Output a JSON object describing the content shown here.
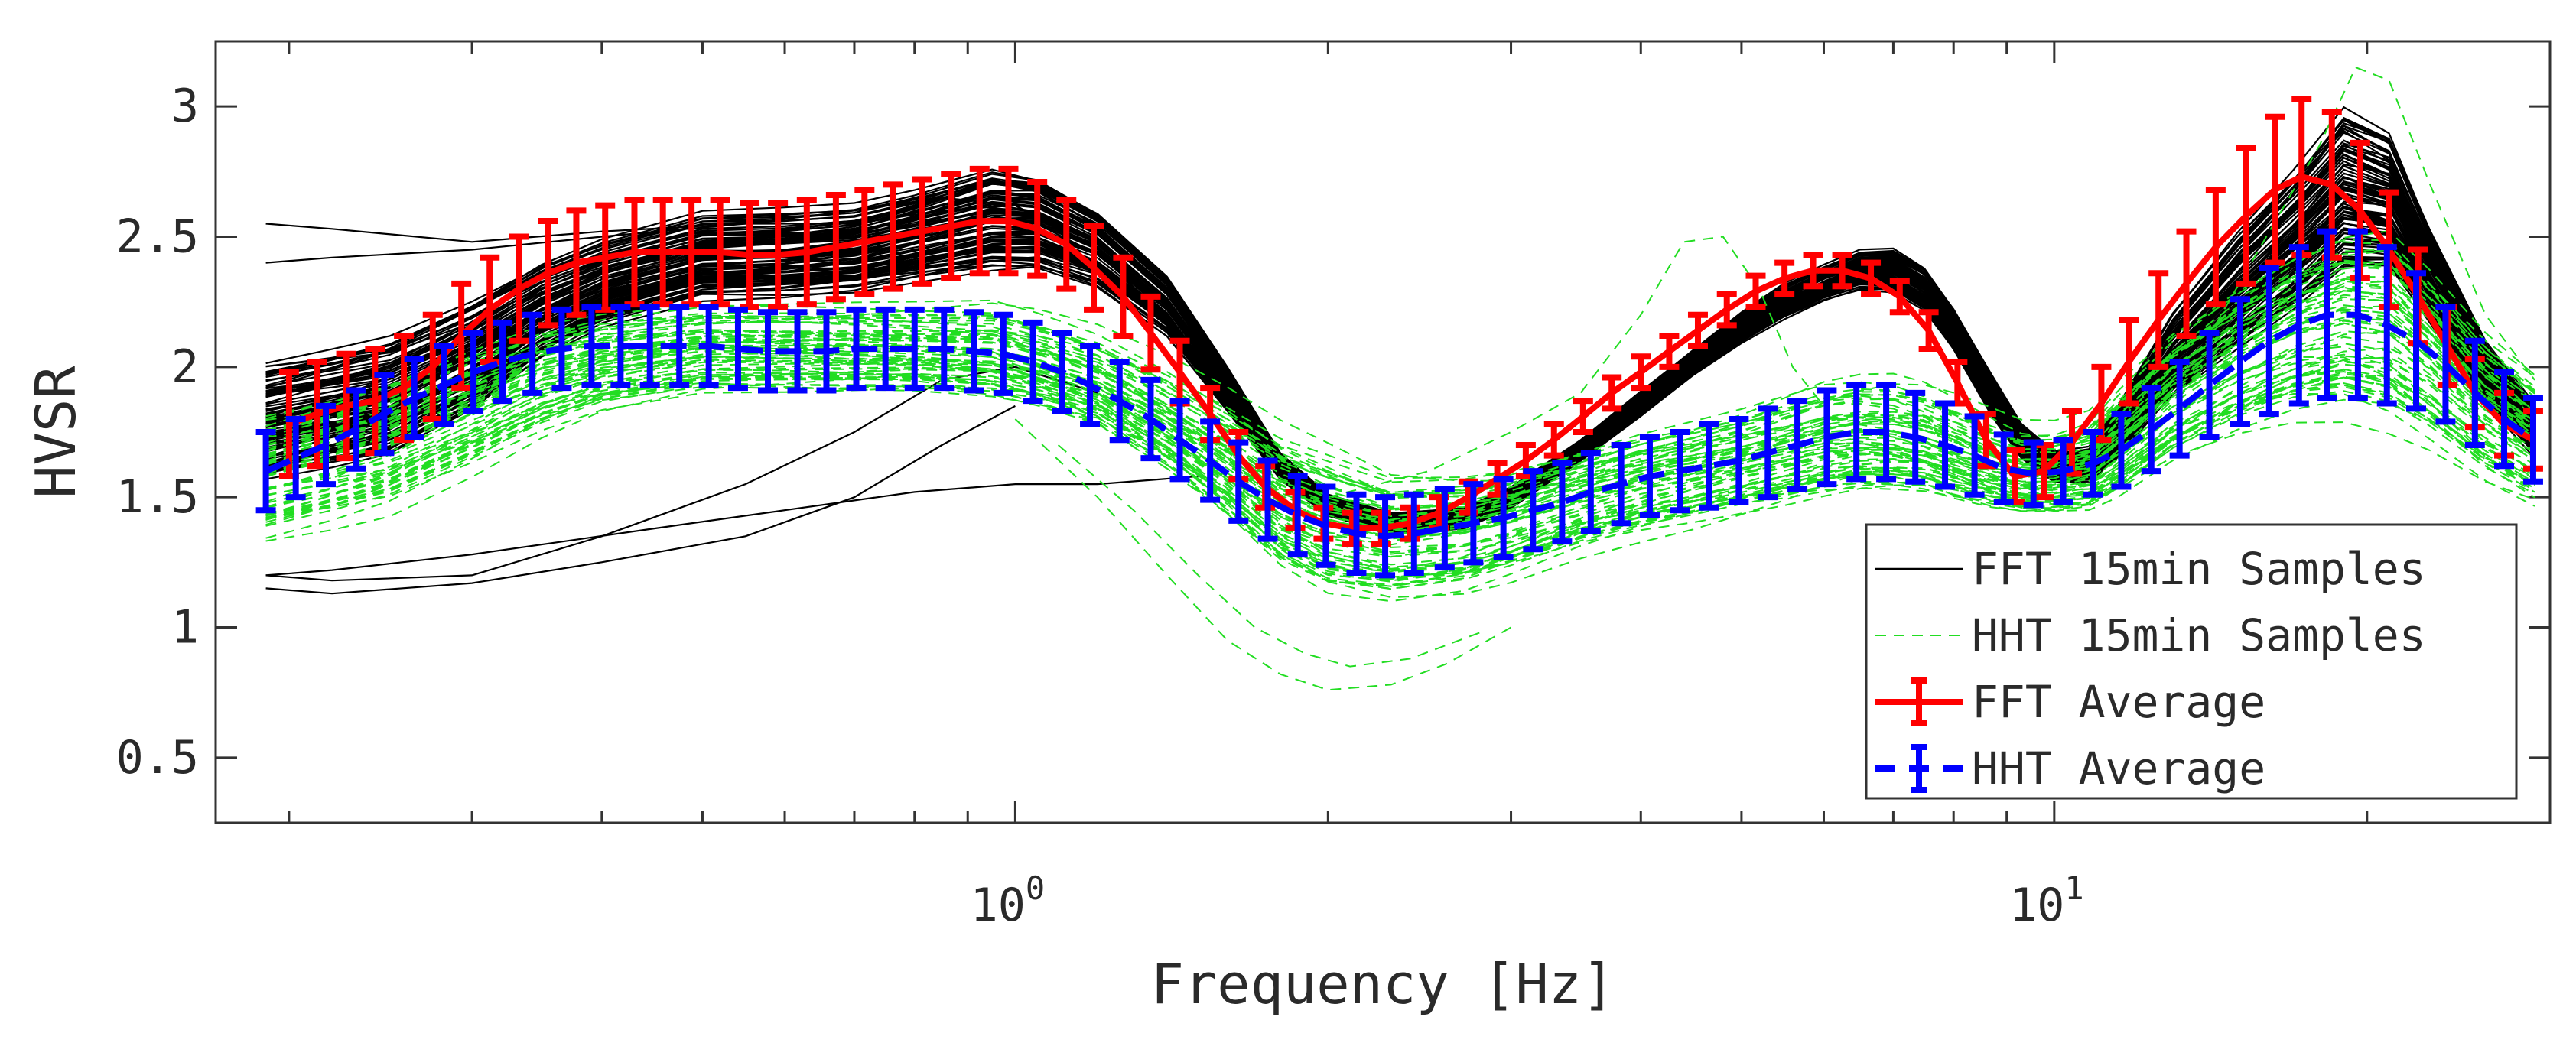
{
  "chart_data": {
    "type": "line",
    "title": "",
    "xlabel": "Frequency [Hz]",
    "ylabel": "HVSR",
    "x_scale": "log",
    "xlim": [
      0.17,
      30
    ],
    "ylim": [
      0.25,
      3.25
    ],
    "x_ticks": [
      {
        "value": 1,
        "base": "10",
        "exp": "0"
      },
      {
        "value": 10,
        "base": "10",
        "exp": "1"
      }
    ],
    "y_ticks": [
      {
        "value": 0.5,
        "label": "0.5"
      },
      {
        "value": 1,
        "label": "1"
      },
      {
        "value": 1.5,
        "label": "1.5"
      },
      {
        "value": 2,
        "label": "2"
      },
      {
        "value": 2.5,
        "label": "2.5"
      },
      {
        "value": 3,
        "label": "3"
      }
    ],
    "grid": false,
    "legend_position": "bottom-right",
    "legend": [
      {
        "label": "FFT 15min Samples",
        "color": "#000000",
        "style": "solid"
      },
      {
        "label": "HHT 15min Samples",
        "color": "#22dd22",
        "style": "dashed"
      },
      {
        "label": "FFT Average",
        "color": "#ff0000",
        "style": "errorbar"
      },
      {
        "label": "HHT Average",
        "color": "#0000ff",
        "style": "errorbar-dashed"
      }
    ],
    "series": [
      {
        "name": "FFT Average",
        "color": "#ff0000",
        "x": [
          0.2,
          0.213,
          0.227,
          0.242,
          0.258,
          0.275,
          0.293,
          0.312,
          0.333,
          0.355,
          0.378,
          0.403,
          0.43,
          0.458,
          0.488,
          0.52,
          0.555,
          0.591,
          0.63,
          0.672,
          0.716,
          0.763,
          0.813,
          0.867,
          0.924,
          0.985,
          1.05,
          1.12,
          1.19,
          1.27,
          1.35,
          1.44,
          1.54,
          1.64,
          1.74,
          1.86,
          1.98,
          2.11,
          2.25,
          2.4,
          2.56,
          2.73,
          2.91,
          3.1,
          3.3,
          3.52,
          3.75,
          4.0,
          4.26,
          4.54,
          4.84,
          5.16,
          5.5,
          5.86,
          6.25,
          6.66,
          7.1,
          7.57,
          8.07,
          8.6,
          9.16,
          9.77,
          10.4,
          11.1,
          11.8,
          12.6,
          13.4,
          14.3,
          15.3,
          16.3,
          17.3,
          18.5,
          19.7,
          21.0,
          22.4,
          23.9,
          25.4,
          27.1,
          28.9
        ],
        "y": [
          1.78,
          1.82,
          1.85,
          1.87,
          1.92,
          2.0,
          2.12,
          2.22,
          2.3,
          2.36,
          2.4,
          2.42,
          2.44,
          2.44,
          2.44,
          2.44,
          2.43,
          2.43,
          2.44,
          2.46,
          2.48,
          2.5,
          2.52,
          2.54,
          2.56,
          2.56,
          2.53,
          2.47,
          2.38,
          2.27,
          2.13,
          1.98,
          1.82,
          1.66,
          1.54,
          1.45,
          1.4,
          1.38,
          1.38,
          1.4,
          1.44,
          1.5,
          1.57,
          1.64,
          1.72,
          1.81,
          1.9,
          1.98,
          2.06,
          2.14,
          2.22,
          2.29,
          2.34,
          2.37,
          2.37,
          2.34,
          2.27,
          2.14,
          1.94,
          1.72,
          1.58,
          1.6,
          1.71,
          1.86,
          2.02,
          2.18,
          2.32,
          2.46,
          2.58,
          2.68,
          2.73,
          2.7,
          2.6,
          2.45,
          2.27,
          2.08,
          1.9,
          1.78,
          1.72
        ],
        "err": [
          0.2,
          0.2,
          0.2,
          0.2,
          0.2,
          0.2,
          0.2,
          0.2,
          0.2,
          0.2,
          0.2,
          0.2,
          0.2,
          0.2,
          0.2,
          0.2,
          0.2,
          0.2,
          0.2,
          0.2,
          0.2,
          0.2,
          0.2,
          0.2,
          0.2,
          0.2,
          0.18,
          0.17,
          0.16,
          0.15,
          0.14,
          0.12,
          0.1,
          0.09,
          0.08,
          0.07,
          0.06,
          0.06,
          0.06,
          0.06,
          0.06,
          0.06,
          0.06,
          0.06,
          0.06,
          0.06,
          0.06,
          0.06,
          0.06,
          0.06,
          0.06,
          0.06,
          0.06,
          0.06,
          0.06,
          0.06,
          0.06,
          0.07,
          0.08,
          0.1,
          0.1,
          0.1,
          0.12,
          0.14,
          0.16,
          0.18,
          0.2,
          0.22,
          0.26,
          0.28,
          0.3,
          0.28,
          0.26,
          0.22,
          0.18,
          0.15,
          0.13,
          0.12,
          0.11
        ]
      },
      {
        "name": "HHT Average",
        "color": "#0000ff",
        "x": [
          0.19,
          0.203,
          0.217,
          0.232,
          0.247,
          0.264,
          0.282,
          0.301,
          0.321,
          0.343,
          0.366,
          0.391,
          0.417,
          0.445,
          0.475,
          0.507,
          0.541,
          0.578,
          0.617,
          0.658,
          0.703,
          0.75,
          0.8,
          0.854,
          0.912,
          0.974,
          1.04,
          1.11,
          1.18,
          1.26,
          1.35,
          1.44,
          1.54,
          1.64,
          1.75,
          1.87,
          1.99,
          2.13,
          2.27,
          2.42,
          2.59,
          2.76,
          2.95,
          3.15,
          3.36,
          3.58,
          3.83,
          4.08,
          4.36,
          4.65,
          4.97,
          5.3,
          5.66,
          6.04,
          6.45,
          6.89,
          7.35,
          7.85,
          8.38,
          8.94,
          9.55,
          10.2,
          10.9,
          11.6,
          12.4,
          13.2,
          14.1,
          15.1,
          16.1,
          17.2,
          18.3,
          19.6,
          20.9,
          22.3,
          23.8,
          25.4,
          27.1,
          28.9
        ],
        "y": [
          1.6,
          1.65,
          1.7,
          1.76,
          1.82,
          1.88,
          1.93,
          1.98,
          2.02,
          2.05,
          2.07,
          2.08,
          2.08,
          2.08,
          2.08,
          2.08,
          2.07,
          2.06,
          2.06,
          2.06,
          2.07,
          2.07,
          2.07,
          2.07,
          2.06,
          2.05,
          2.02,
          1.98,
          1.93,
          1.87,
          1.8,
          1.72,
          1.64,
          1.56,
          1.49,
          1.43,
          1.39,
          1.36,
          1.35,
          1.36,
          1.38,
          1.4,
          1.42,
          1.45,
          1.48,
          1.52,
          1.55,
          1.58,
          1.6,
          1.62,
          1.64,
          1.67,
          1.7,
          1.73,
          1.75,
          1.75,
          1.73,
          1.7,
          1.66,
          1.61,
          1.59,
          1.6,
          1.63,
          1.68,
          1.76,
          1.84,
          1.93,
          2.02,
          2.1,
          2.16,
          2.2,
          2.2,
          2.16,
          2.1,
          2.01,
          1.9,
          1.8,
          1.72
        ],
        "err": [
          0.15,
          0.15,
          0.15,
          0.15,
          0.15,
          0.15,
          0.15,
          0.15,
          0.15,
          0.15,
          0.15,
          0.15,
          0.15,
          0.15,
          0.15,
          0.15,
          0.15,
          0.15,
          0.15,
          0.15,
          0.15,
          0.15,
          0.15,
          0.15,
          0.15,
          0.15,
          0.15,
          0.15,
          0.15,
          0.15,
          0.15,
          0.15,
          0.15,
          0.15,
          0.15,
          0.15,
          0.15,
          0.15,
          0.15,
          0.15,
          0.15,
          0.15,
          0.15,
          0.15,
          0.15,
          0.15,
          0.15,
          0.15,
          0.15,
          0.16,
          0.16,
          0.17,
          0.17,
          0.18,
          0.18,
          0.18,
          0.17,
          0.16,
          0.15,
          0.13,
          0.12,
          0.12,
          0.12,
          0.14,
          0.16,
          0.18,
          0.2,
          0.24,
          0.28,
          0.3,
          0.32,
          0.32,
          0.3,
          0.26,
          0.22,
          0.2,
          0.18,
          0.16
        ]
      }
    ],
    "sample_families": [
      {
        "name": "FFT 15min Samples",
        "color": "#000000",
        "style": "solid",
        "count": 90,
        "x": [
          0.19,
          0.22,
          0.25,
          0.3,
          0.35,
          0.4,
          0.5,
          0.6,
          0.7,
          0.8,
          0.95,
          1.05,
          1.2,
          1.4,
          1.6,
          1.8,
          2.0,
          2.3,
          2.7,
          3.0,
          3.5,
          4.0,
          4.5,
          5.0,
          5.5,
          6.0,
          6.5,
          7.0,
          7.5,
          8.0,
          8.7,
          9.3,
          10.0,
          10.8,
          11.5,
          13.0,
          15.0,
          17.0,
          19.0,
          21.0,
          23.0,
          26.0,
          29.0
        ],
        "y_center": [
          1.8,
          1.85,
          1.9,
          2.05,
          2.22,
          2.32,
          2.42,
          2.43,
          2.45,
          2.5,
          2.57,
          2.56,
          2.46,
          2.24,
          1.92,
          1.62,
          1.47,
          1.4,
          1.42,
          1.5,
          1.68,
          1.86,
          2.02,
          2.15,
          2.25,
          2.32,
          2.37,
          2.37,
          2.3,
          2.15,
          1.9,
          1.72,
          1.62,
          1.63,
          1.75,
          2.05,
          2.3,
          2.5,
          2.7,
          2.65,
          2.35,
          1.98,
          1.75
        ],
        "spread": [
          0.28,
          0.28,
          0.28,
          0.26,
          0.22,
          0.2,
          0.2,
          0.2,
          0.2,
          0.21,
          0.24,
          0.22,
          0.18,
          0.14,
          0.1,
          0.06,
          0.05,
          0.05,
          0.05,
          0.05,
          0.05,
          0.06,
          0.06,
          0.07,
          0.08,
          0.08,
          0.09,
          0.1,
          0.1,
          0.1,
          0.1,
          0.08,
          0.07,
          0.08,
          0.12,
          0.2,
          0.28,
          0.33,
          0.38,
          0.32,
          0.22,
          0.14,
          0.12
        ],
        "outliers": [
          {
            "x": [
              0.19,
              0.22,
              0.3,
              0.4,
              0.55,
              0.7,
              0.85,
              1.0,
              1.2,
              1.5
            ],
            "y": [
              2.55,
              2.53,
              2.48,
              2.52,
              2.55,
              2.55,
              2.6,
              2.62,
              2.45,
              2.05
            ]
          },
          {
            "x": [
              0.19,
              0.22,
              0.3,
              0.4,
              0.55,
              0.7,
              0.85,
              1.0,
              1.2
            ],
            "y": [
              2.4,
              2.42,
              2.45,
              2.5,
              2.55,
              2.6,
              2.65,
              2.62,
              2.45
            ]
          },
          {
            "x": [
              0.19,
              0.22,
              0.3,
              0.4,
              0.55,
              0.7,
              0.85,
              1.0,
              1.2
            ],
            "y": [
              1.2,
              1.18,
              1.2,
              1.35,
              1.55,
              1.75,
              1.95,
              2.0,
              1.9
            ]
          },
          {
            "x": [
              0.19,
              0.22,
              0.3,
              0.4,
              0.55,
              0.7,
              0.85,
              1.0
            ],
            "y": [
              1.15,
              1.13,
              1.17,
              1.25,
              1.35,
              1.5,
              1.7,
              1.85
            ]
          },
          {
            "x": [
              0.19,
              0.22,
              0.3,
              0.45,
              0.6,
              0.8,
              1.0,
              1.2,
              1.5
            ],
            "y": [
              1.2,
              1.22,
              1.28,
              1.38,
              1.45,
              1.52,
              1.55,
              1.55,
              1.58
            ]
          }
        ]
      },
      {
        "name": "HHT 15min Samples",
        "color": "#22dd22",
        "style": "dashed",
        "count": 70,
        "x": [
          0.19,
          0.22,
          0.25,
          0.3,
          0.35,
          0.4,
          0.5,
          0.6,
          0.7,
          0.8,
          0.95,
          1.05,
          1.2,
          1.4,
          1.6,
          1.8,
          2.0,
          2.3,
          2.7,
          3.0,
          3.5,
          4.0,
          4.5,
          5.0,
          5.5,
          6.0,
          6.5,
          7.0,
          7.5,
          8.0,
          8.7,
          9.3,
          10.0,
          10.8,
          11.5,
          13.0,
          15.0,
          17.0,
          19.0,
          21.0,
          23.0,
          26.0,
          29.0
        ],
        "y_center": [
          1.6,
          1.66,
          1.72,
          1.85,
          1.96,
          2.02,
          2.07,
          2.07,
          2.07,
          2.07,
          2.06,
          2.02,
          1.95,
          1.8,
          1.65,
          1.5,
          1.42,
          1.36,
          1.38,
          1.42,
          1.5,
          1.56,
          1.6,
          1.64,
          1.68,
          1.72,
          1.74,
          1.74,
          1.72,
          1.68,
          1.63,
          1.6,
          1.6,
          1.63,
          1.72,
          1.9,
          2.05,
          2.15,
          2.2,
          2.18,
          2.05,
          1.85,
          1.72
        ],
        "spread": [
          0.3,
          0.3,
          0.3,
          0.28,
          0.25,
          0.22,
          0.2,
          0.2,
          0.2,
          0.2,
          0.22,
          0.22,
          0.22,
          0.25,
          0.28,
          0.32,
          0.34,
          0.3,
          0.28,
          0.26,
          0.24,
          0.24,
          0.24,
          0.24,
          0.25,
          0.26,
          0.26,
          0.26,
          0.25,
          0.24,
          0.22,
          0.2,
          0.2,
          0.22,
          0.26,
          0.3,
          0.34,
          0.38,
          0.42,
          0.45,
          0.4,
          0.34,
          0.3
        ],
        "outliers": [
          {
            "x": [
              2.0,
              2.5,
              3.0,
              3.5,
              4.0,
              4.4,
              4.8,
              5.2,
              5.6,
              6.0
            ],
            "y": [
              1.5,
              1.6,
              1.75,
              1.9,
              2.2,
              2.48,
              2.5,
              2.3,
              2.0,
              1.85
            ]
          },
          {
            "x": [
              1.0,
              1.2,
              1.4,
              1.6,
              1.8,
              2.0,
              2.3,
              2.6,
              3.0
            ],
            "y": [
              1.8,
              1.5,
              1.2,
              0.95,
              0.82,
              0.76,
              0.78,
              0.86,
              1.0
            ]
          },
          {
            "x": [
              1.1,
              1.3,
              1.5,
              1.7,
              1.9,
              2.1,
              2.4,
              2.8
            ],
            "y": [
              1.7,
              1.45,
              1.2,
              1.0,
              0.9,
              0.85,
              0.88,
              0.98
            ]
          },
          {
            "x": [
              14.0,
              16.0,
              18.0,
              19.5,
              21.0,
              23.0,
              26.0,
              29.0
            ],
            "y": [
              2.1,
              2.5,
              2.85,
              3.15,
              3.1,
              2.7,
              2.2,
              1.95
            ]
          }
        ]
      }
    ]
  }
}
